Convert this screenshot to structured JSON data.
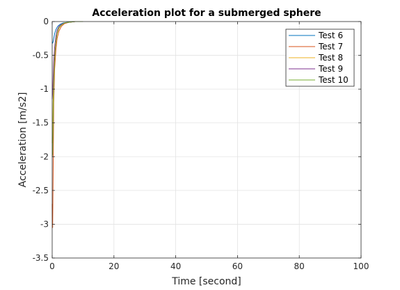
{
  "chart_data": {
    "type": "line",
    "title": "Acceleration plot for a submerged sphere",
    "xlabel": "Time [second]",
    "ylabel": "Acceleration [m/s2]",
    "xlim": [
      0,
      100
    ],
    "ylim": [
      -3.5,
      0
    ],
    "xticks": [
      0,
      20,
      40,
      60,
      80,
      100
    ],
    "xtick_labels": [
      "0",
      "20",
      "40",
      "60",
      "80",
      "100"
    ],
    "yticks": [
      0,
      -0.5,
      -1,
      -1.5,
      -2,
      -2.5,
      -3,
      -3.5
    ],
    "ytick_labels": [
      "0",
      "-0.5",
      "-1",
      "-1.5",
      "-2",
      "-2.5",
      "-3",
      "-3.5"
    ],
    "grid": true,
    "legend_position": "top-right",
    "series": [
      {
        "name": "Test 6",
        "color": "#0072bd",
        "x": [
          0,
          0.15,
          0.3,
          0.5,
          0.8,
          1.2,
          1.8,
          2.6,
          3.6,
          5,
          7,
          9
        ],
        "y": [
          -0.3,
          -0.32,
          -0.3,
          -0.25,
          -0.18,
          -0.12,
          -0.07,
          -0.04,
          -0.02,
          -0.01,
          0,
          0
        ]
      },
      {
        "name": "Test 7",
        "color": "#d95319",
        "x": [
          0,
          0.15,
          0.3,
          0.5,
          0.8,
          1.2,
          1.6,
          2.2,
          3,
          4,
          5.5,
          7.5,
          9.5
        ],
        "y": [
          -2.7,
          -3.05,
          -2.3,
          -1.2,
          -0.7,
          -0.42,
          -0.25,
          -0.14,
          -0.07,
          -0.03,
          -0.01,
          0,
          0
        ]
      },
      {
        "name": "Test 8",
        "color": "#edb120",
        "x": [
          0,
          0.15,
          0.3,
          0.5,
          0.8,
          1.2,
          1.6,
          2.2,
          3,
          4,
          5.5,
          7.5
        ],
        "y": [
          -1.8,
          -1.65,
          -1.2,
          -0.8,
          -0.5,
          -0.3,
          -0.18,
          -0.1,
          -0.05,
          -0.02,
          -0.01,
          0
        ]
      },
      {
        "name": "Test 9",
        "color": "#7e2f8e",
        "x": [
          0,
          0.15,
          0.3,
          0.5,
          0.8,
          1.2,
          1.6,
          2.2,
          3,
          4,
          5.5,
          7.5
        ],
        "y": [
          -1.15,
          -1.05,
          -0.85,
          -0.6,
          -0.38,
          -0.22,
          -0.13,
          -0.07,
          -0.04,
          -0.02,
          -0.01,
          0
        ]
      },
      {
        "name": "Test 10",
        "color": "#77ac30",
        "x": [
          0,
          0.15,
          0.3,
          0.5,
          0.8,
          1.2,
          1.6,
          2.2,
          3,
          4,
          5.5,
          7.5,
          10
        ],
        "y": [
          -2.0,
          -1.95,
          -1.5,
          -0.95,
          -0.55,
          -0.3,
          -0.17,
          -0.09,
          -0.05,
          -0.02,
          -0.01,
          0,
          0
        ]
      }
    ]
  }
}
